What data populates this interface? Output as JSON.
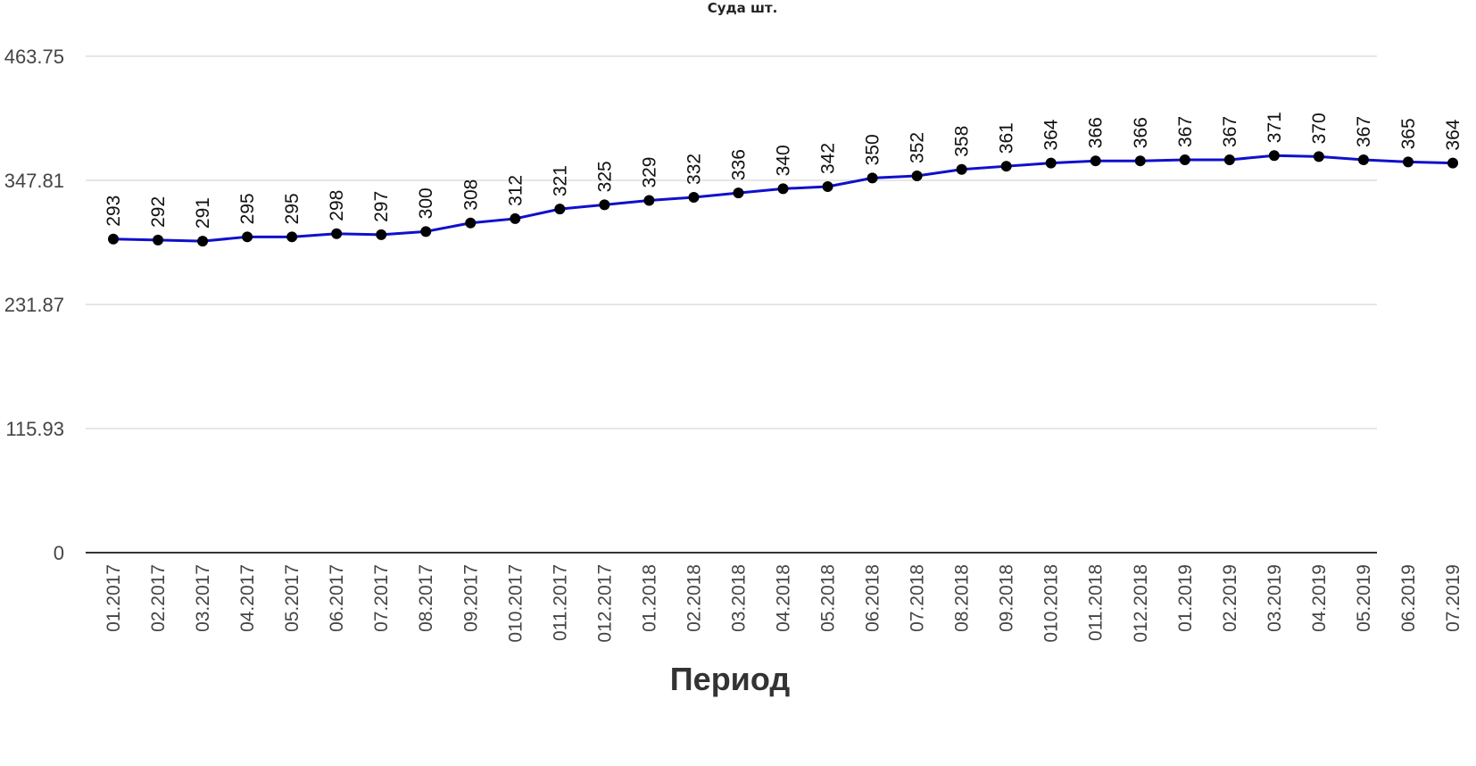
{
  "chart_data": {
    "type": "line",
    "title": "Суда шт.",
    "xlabel": "Период",
    "ylabel": "",
    "ylim": [
      0,
      463.75
    ],
    "yticks": [
      "0",
      "115.93",
      "231.87",
      "347.81",
      "463.75"
    ],
    "grid": true,
    "legend": "none",
    "categories": [
      "01.2017",
      "02.2017",
      "03.2017",
      "04.2017",
      "05.2017",
      "06.2017",
      "07.2017",
      "08.2017",
      "09.2017",
      "010.2017",
      "011.2017",
      "012.2017",
      "01.2018",
      "02.2018",
      "03.2018",
      "04.2018",
      "05.2018",
      "06.2018",
      "07.2018",
      "08.2018",
      "09.2018",
      "010.2018",
      "011.2018",
      "012.2018",
      "01.2019",
      "02.2019",
      "03.2019",
      "04.2019",
      "05.2019",
      "06.2019",
      "07.2019"
    ],
    "series": [
      {
        "values": [
          293,
          292,
          291,
          295,
          295,
          298,
          297,
          300,
          308,
          312,
          321,
          325,
          329,
          332,
          336,
          340,
          342,
          350,
          352,
          358,
          361,
          364,
          366,
          366,
          367,
          367,
          371,
          370,
          367,
          365,
          364
        ],
        "labels": [
          "293",
          "292",
          "291",
          "295",
          "295",
          "298",
          "297",
          "300",
          "308",
          "312",
          "321",
          "325",
          "329",
          "332",
          "336",
          "340",
          "342",
          "350",
          "352",
          "358",
          "361",
          "364",
          "366",
          "366",
          "367",
          "367",
          "371",
          "370",
          "367",
          "365",
          "364"
        ],
        "color": "#1010cc"
      }
    ],
    "colors": {
      "line": "#1010cc",
      "marker": "#000000",
      "grid": "#cccccc",
      "axis": "#333333"
    }
  }
}
